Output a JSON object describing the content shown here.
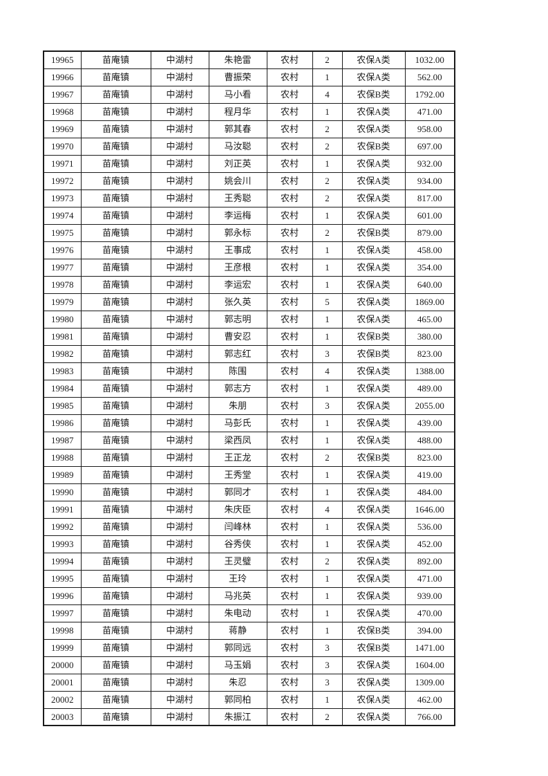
{
  "table": {
    "rows": [
      [
        "19965",
        "苗庵镇",
        "中湖村",
        "朱艳雷",
        "农村",
        "2",
        "农保A类",
        "1032.00"
      ],
      [
        "19966",
        "苗庵镇",
        "中湖村",
        "曹振荣",
        "农村",
        "1",
        "农保A类",
        "562.00"
      ],
      [
        "19967",
        "苗庵镇",
        "中湖村",
        "马小看",
        "农村",
        "4",
        "农保B类",
        "1792.00"
      ],
      [
        "19968",
        "苗庵镇",
        "中湖村",
        "程月华",
        "农村",
        "1",
        "农保A类",
        "471.00"
      ],
      [
        "19969",
        "苗庵镇",
        "中湖村",
        "郭其春",
        "农村",
        "2",
        "农保A类",
        "958.00"
      ],
      [
        "19970",
        "苗庵镇",
        "中湖村",
        "马汝聪",
        "农村",
        "2",
        "农保B类",
        "697.00"
      ],
      [
        "19971",
        "苗庵镇",
        "中湖村",
        "刘正英",
        "农村",
        "1",
        "农保A类",
        "932.00"
      ],
      [
        "19972",
        "苗庵镇",
        "中湖村",
        "姚会川",
        "农村",
        "2",
        "农保A类",
        "934.00"
      ],
      [
        "19973",
        "苗庵镇",
        "中湖村",
        "王秀聪",
        "农村",
        "2",
        "农保A类",
        "817.00"
      ],
      [
        "19974",
        "苗庵镇",
        "中湖村",
        "李运梅",
        "农村",
        "1",
        "农保A类",
        "601.00"
      ],
      [
        "19975",
        "苗庵镇",
        "中湖村",
        "郭永标",
        "农村",
        "2",
        "农保B类",
        "879.00"
      ],
      [
        "19976",
        "苗庵镇",
        "中湖村",
        "王事成",
        "农村",
        "1",
        "农保A类",
        "458.00"
      ],
      [
        "19977",
        "苗庵镇",
        "中湖村",
        "王彦根",
        "农村",
        "1",
        "农保A类",
        "354.00"
      ],
      [
        "19978",
        "苗庵镇",
        "中湖村",
        "李运宏",
        "农村",
        "1",
        "农保A类",
        "640.00"
      ],
      [
        "19979",
        "苗庵镇",
        "中湖村",
        "张久英",
        "农村",
        "5",
        "农保A类",
        "1869.00"
      ],
      [
        "19980",
        "苗庵镇",
        "中湖村",
        "郭志明",
        "农村",
        "1",
        "农保A类",
        "465.00"
      ],
      [
        "19981",
        "苗庵镇",
        "中湖村",
        "曹安忍",
        "农村",
        "1",
        "农保B类",
        "380.00"
      ],
      [
        "19982",
        "苗庵镇",
        "中湖村",
        "郭志红",
        "农村",
        "3",
        "农保B类",
        "823.00"
      ],
      [
        "19983",
        "苗庵镇",
        "中湖村",
        "陈围",
        "农村",
        "4",
        "农保A类",
        "1388.00"
      ],
      [
        "19984",
        "苗庵镇",
        "中湖村",
        "郭志方",
        "农村",
        "1",
        "农保A类",
        "489.00"
      ],
      [
        "19985",
        "苗庵镇",
        "中湖村",
        "朱朋",
        "农村",
        "3",
        "农保A类",
        "2055.00"
      ],
      [
        "19986",
        "苗庵镇",
        "中湖村",
        "马彭氏",
        "农村",
        "1",
        "农保A类",
        "439.00"
      ],
      [
        "19987",
        "苗庵镇",
        "中湖村",
        "梁西凤",
        "农村",
        "1",
        "农保A类",
        "488.00"
      ],
      [
        "19988",
        "苗庵镇",
        "中湖村",
        "王正龙",
        "农村",
        "2",
        "农保B类",
        "823.00"
      ],
      [
        "19989",
        "苗庵镇",
        "中湖村",
        "王秀堂",
        "农村",
        "1",
        "农保A类",
        "419.00"
      ],
      [
        "19990",
        "苗庵镇",
        "中湖村",
        "郭同才",
        "农村",
        "1",
        "农保A类",
        "484.00"
      ],
      [
        "19991",
        "苗庵镇",
        "中湖村",
        "朱庆臣",
        "农村",
        "4",
        "农保A类",
        "1646.00"
      ],
      [
        "19992",
        "苗庵镇",
        "中湖村",
        "闫峰林",
        "农村",
        "1",
        "农保A类",
        "536.00"
      ],
      [
        "19993",
        "苗庵镇",
        "中湖村",
        "谷秀侠",
        "农村",
        "1",
        "农保A类",
        "452.00"
      ],
      [
        "19994",
        "苗庵镇",
        "中湖村",
        "王灵璧",
        "农村",
        "2",
        "农保A类",
        "892.00"
      ],
      [
        "19995",
        "苗庵镇",
        "中湖村",
        "王玲",
        "农村",
        "1",
        "农保A类",
        "471.00"
      ],
      [
        "19996",
        "苗庵镇",
        "中湖村",
        "马兆英",
        "农村",
        "1",
        "农保A类",
        "939.00"
      ],
      [
        "19997",
        "苗庵镇",
        "中湖村",
        "朱电动",
        "农村",
        "1",
        "农保A类",
        "470.00"
      ],
      [
        "19998",
        "苗庵镇",
        "中湖村",
        "蒋静",
        "农村",
        "1",
        "农保B类",
        "394.00"
      ],
      [
        "19999",
        "苗庵镇",
        "中湖村",
        "郭同远",
        "农村",
        "3",
        "农保B类",
        "1471.00"
      ],
      [
        "20000",
        "苗庵镇",
        "中湖村",
        "马玉娟",
        "农村",
        "3",
        "农保A类",
        "1604.00"
      ],
      [
        "20001",
        "苗庵镇",
        "中湖村",
        "朱忍",
        "农村",
        "3",
        "农保A类",
        "1309.00"
      ],
      [
        "20002",
        "苗庵镇",
        "中湖村",
        "郭同柏",
        "农村",
        "1",
        "农保A类",
        "462.00"
      ],
      [
        "20003",
        "苗庵镇",
        "中湖村",
        "朱振江",
        "农村",
        "2",
        "农保A类",
        "766.00"
      ]
    ]
  }
}
